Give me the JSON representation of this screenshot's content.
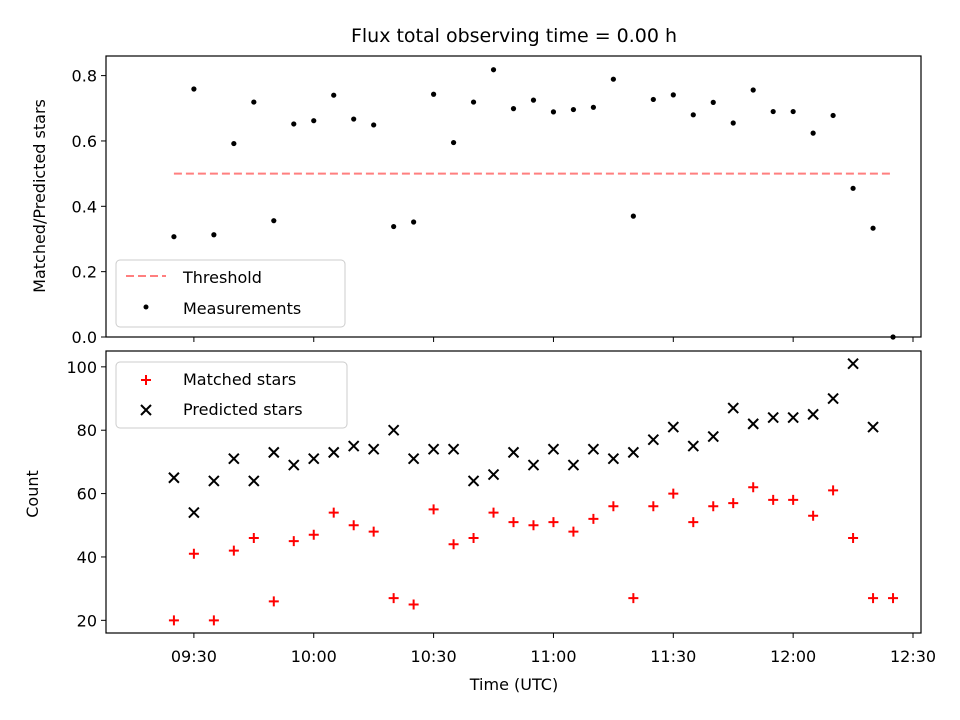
{
  "chart_data": [
    {
      "type": "scatter",
      "title": "Flux total observing time = 0.00 h",
      "xlabel": "",
      "ylabel": "Matched/Predicted stars",
      "ylim": [
        0,
        0.86
      ],
      "yticks": [
        "0.0",
        "0.2",
        "0.4",
        "0.6",
        "0.8"
      ],
      "ytick_values": [
        0,
        0.2,
        0.4,
        0.6,
        0.8
      ],
      "xlim": [
        "09:08",
        "12:32"
      ],
      "legend_position": "lower-left",
      "series": [
        {
          "name": "Threshold",
          "kind": "dashed-line",
          "color": "#ff7f7f",
          "x": [
            "09:25",
            "12:25"
          ],
          "y": [
            0.5,
            0.5
          ]
        },
        {
          "name": "Measurements",
          "kind": "points",
          "color": "#000000",
          "x": [
            "09:25",
            "09:30",
            "09:35",
            "09:40",
            "09:45",
            "09:50",
            "09:55",
            "10:00",
            "10:05",
            "10:10",
            "10:15",
            "10:20",
            "10:25",
            "10:30",
            "10:35",
            "10:40",
            "10:45",
            "10:50",
            "10:55",
            "11:00",
            "11:05",
            "11:10",
            "11:15",
            "11:20",
            "11:25",
            "11:30",
            "11:35",
            "11:40",
            "11:45",
            "11:50",
            "11:55",
            "12:00",
            "12:05",
            "12:10",
            "12:15",
            "12:20",
            "12:25"
          ],
          "y": [
            0.307,
            0.759,
            0.313,
            0.592,
            0.719,
            0.356,
            0.652,
            0.662,
            0.74,
            0.667,
            0.649,
            0.338,
            0.352,
            0.743,
            0.595,
            0.719,
            0.818,
            0.699,
            0.725,
            0.689,
            0.696,
            0.703,
            0.789,
            0.37,
            0.727,
            0.741,
            0.68,
            0.718,
            0.655,
            0.756,
            0.69,
            0.69,
            0.624,
            0.678,
            0.455,
            0.333,
            0.0
          ]
        }
      ]
    },
    {
      "type": "scatter",
      "title": "",
      "xlabel": "Time (UTC)",
      "ylabel": "Count",
      "ylim": [
        16,
        105
      ],
      "yticks": [
        "20",
        "40",
        "60",
        "80",
        "100"
      ],
      "ytick_values": [
        20,
        40,
        60,
        80,
        100
      ],
      "xlim": [
        "09:08",
        "12:32"
      ],
      "xticks": [
        "09:30",
        "10:00",
        "10:30",
        "11:00",
        "11:30",
        "12:00",
        "12:30"
      ],
      "legend_position": "upper-left",
      "series": [
        {
          "name": "Matched stars",
          "kind": "plus",
          "color": "#ff0000",
          "x": [
            "09:25",
            "09:30",
            "09:35",
            "09:40",
            "09:45",
            "09:50",
            "09:55",
            "10:00",
            "10:05",
            "10:10",
            "10:15",
            "10:20",
            "10:25",
            "10:30",
            "10:35",
            "10:40",
            "10:45",
            "10:50",
            "10:55",
            "11:00",
            "11:05",
            "11:10",
            "11:15",
            "11:20",
            "11:25",
            "11:30",
            "11:35",
            "11:40",
            "11:45",
            "11:50",
            "11:55",
            "12:00",
            "12:05",
            "12:10",
            "12:15",
            "12:20",
            "12:25"
          ],
          "y": [
            20,
            41,
            20,
            42,
            46,
            26,
            45,
            47,
            54,
            50,
            48,
            27,
            25,
            55,
            44,
            46,
            54,
            51,
            50,
            51,
            48,
            52,
            56,
            27,
            56,
            60,
            51,
            56,
            57,
            62,
            58,
            58,
            53,
            61,
            46,
            27,
            27
          ]
        },
        {
          "name": "Predicted stars",
          "kind": "x",
          "color": "#000000",
          "x": [
            "09:25",
            "09:30",
            "09:35",
            "09:40",
            "09:45",
            "09:50",
            "09:55",
            "10:00",
            "10:05",
            "10:10",
            "10:15",
            "10:20",
            "10:25",
            "10:30",
            "10:35",
            "10:40",
            "10:45",
            "10:50",
            "10:55",
            "11:00",
            "11:05",
            "11:10",
            "11:15",
            "11:20",
            "11:25",
            "11:30",
            "11:35",
            "11:40",
            "11:45",
            "11:50",
            "11:55",
            "12:00",
            "12:05",
            "12:10",
            "12:15",
            "12:20"
          ],
          "y": [
            65,
            54,
            64,
            71,
            64,
            73,
            69,
            71,
            73,
            75,
            74,
            80,
            71,
            74,
            74,
            64,
            66,
            73,
            69,
            74,
            69,
            74,
            71,
            73,
            77,
            81,
            75,
            78,
            87,
            82,
            84,
            84,
            85,
            90,
            101,
            81
          ]
        }
      ]
    }
  ]
}
